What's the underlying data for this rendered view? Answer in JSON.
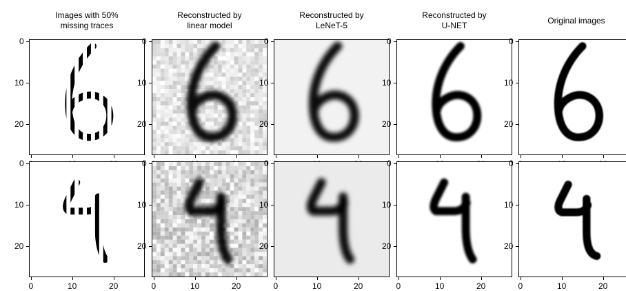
{
  "chart_data": {
    "type": "image-grid",
    "column_titles": [
      [
        "Images with 50%",
        "missing traces"
      ],
      [
        "Reconstructed by",
        "linear model"
      ],
      [
        "Reconstructed by",
        "LeNeT-5"
      ],
      [
        "Reconstructed by",
        "U-NET"
      ],
      [
        "Original images",
        ""
      ]
    ],
    "rows": [
      {
        "digit": "6"
      },
      {
        "digit": "4"
      }
    ],
    "image_size": [
      28,
      28
    ],
    "xlim": [
      0,
      27
    ],
    "ylim": [
      27,
      0
    ],
    "x_ticks": [
      "0",
      "10",
      "20"
    ],
    "y_ticks": [
      "0",
      "10",
      "20"
    ],
    "colormap": "gray_r"
  }
}
